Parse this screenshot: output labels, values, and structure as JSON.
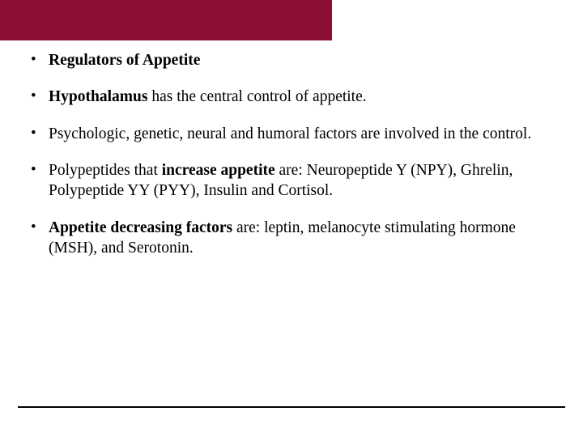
{
  "colors": {
    "header_bg": "#8b0e35",
    "text": "#000000",
    "background": "#ffffff",
    "footer_line": "#000000"
  },
  "bullets": [
    {
      "segments": [
        {
          "text": "Regulators of Appetite",
          "bold": true
        }
      ]
    },
    {
      "segments": [
        {
          "text": "Hypothalamus",
          "bold": true
        },
        {
          "text": " has the central control of appetite.",
          "bold": false
        }
      ]
    },
    {
      "segments": [
        {
          "text": "Psychologic, genetic, neural and humoral factors are involved in the control.",
          "bold": false
        }
      ]
    },
    {
      "segments": [
        {
          "text": "Polypeptides that ",
          "bold": false
        },
        {
          "text": "increase appetite",
          "bold": true
        },
        {
          "text": " are: Neuropeptide Y (NPY), Ghrelin, Polypeptide YY (PYY), Insulin and Cortisol.",
          "bold": false
        }
      ]
    },
    {
      "segments": [
        {
          "text": "Appetite decreasing factors",
          "bold": true
        },
        {
          "text": " are: leptin, melanocyte stimulating hormone (MSH), and Serotonin.",
          "bold": false
        }
      ]
    }
  ]
}
